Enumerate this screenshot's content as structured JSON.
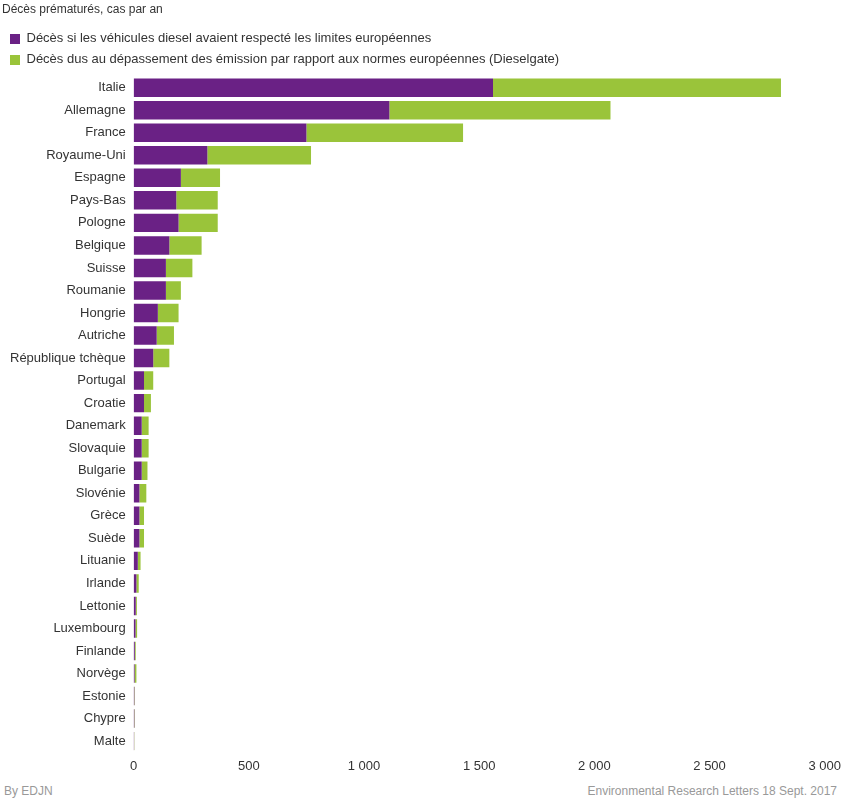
{
  "chart_data": {
    "type": "bar",
    "orientation": "horizontal",
    "stacked": true,
    "grid": false,
    "legend": "top-left",
    "subtitle": "Décès prématurés, cas par an",
    "credit": "By EDJN",
    "source": "Environmental Research Letters 18 Sept. 2017",
    "categories": [
      "Italie",
      "Allemagne",
      "France",
      "Royaume-Uni",
      "Espagne",
      "Pays-Bas",
      "Pologne",
      "Belgique",
      "Suisse",
      "Roumanie",
      "Hongrie",
      "Autriche",
      "République tchèque",
      "Portugal",
      "Croatie",
      "Danemark",
      "Slovaquie",
      "Bulgarie",
      "Slovénie",
      "Grèce",
      "Suède",
      "Lituanie",
      "Irlande",
      "Lettonie",
      "Luxembourg",
      "Finlande",
      "Norvège",
      "Estonie",
      "Chypre",
      "Malte"
    ],
    "series": [
      {
        "name": "Décès si les véhicules diesel avaient respecté les limites européennes",
        "color": "#6a2185",
        "values": [
          1560,
          1110,
          750,
          320,
          205,
          185,
          195,
          155,
          140,
          140,
          105,
          100,
          85,
          45,
          45,
          35,
          35,
          35,
          25,
          25,
          25,
          18,
          12,
          9,
          8,
          5,
          4,
          3,
          3,
          2
        ]
      },
      {
        "name": "Décès dus au dépassement des émission par rapport aux normes européennes (Dieselgate)",
        "color": "#9ac43a",
        "values": [
          1250,
          960,
          680,
          450,
          170,
          180,
          170,
          140,
          115,
          65,
          90,
          75,
          70,
          40,
          30,
          30,
          30,
          25,
          30,
          20,
          20,
          12,
          10,
          5,
          7,
          4,
          8,
          2,
          2,
          1
        ]
      }
    ],
    "xlim": [
      0,
      3000
    ],
    "xticks": [
      0,
      500,
      {
        "value": 1000,
        "label": "1 000"
      },
      {
        "value": 1500,
        "label": "1 500"
      },
      {
        "value": 2000,
        "label": "2 000"
      },
      {
        "value": 2500,
        "label": "2 500"
      },
      {
        "value": 3000,
        "label": "3 000"
      }
    ]
  }
}
